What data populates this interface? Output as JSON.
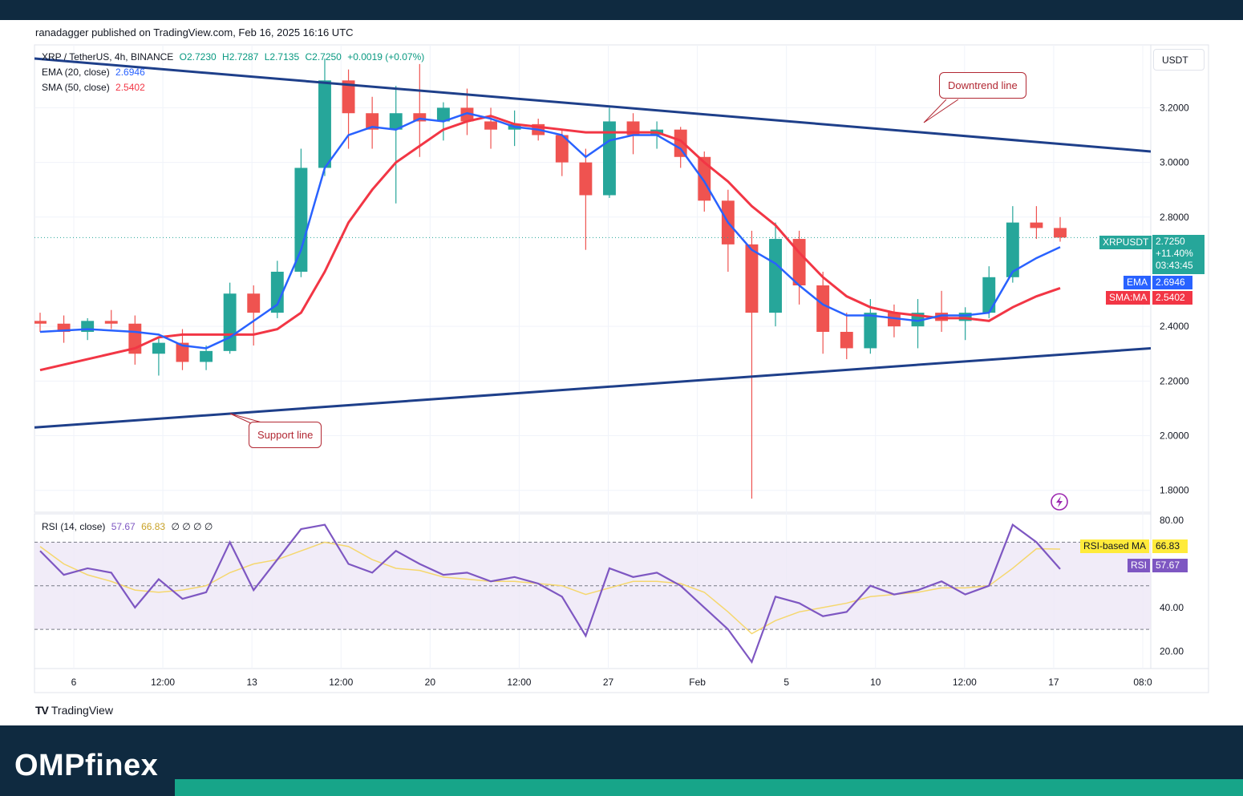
{
  "header": {
    "publisher": "ranadagger published on TradingView.com, Feb 16, 2025 16:16 UTC"
  },
  "legend": {
    "symbol": "XRP / TetherUS, 4h, BINANCE",
    "open": "O2.7230",
    "high": "H2.7287",
    "low": "L2.7135",
    "close": "C2.7250",
    "change": "+0.0019 (+0.07%)",
    "ema_label": "EMA (20, close)",
    "ema_value": "2.6946",
    "sma_label": "SMA (50, close)",
    "sma_value": "2.5402",
    "rsi_label": "RSI (14, close)",
    "rsi_value": "57.67",
    "rsi_ma_value": "66.83",
    "rsi_extra": "∅ ∅ ∅ ∅"
  },
  "axis": {
    "currency": "USDT",
    "price_ticks": [
      "3.2000",
      "3.0000",
      "2.8000",
      "2.4000",
      "2.2000",
      "2.0000",
      "1.8000"
    ],
    "rsi_ticks": [
      "80.00",
      "40.00",
      "20.00"
    ],
    "time_ticks": [
      "6",
      "12:00",
      "13",
      "12:00",
      "20",
      "12:00",
      "27",
      "Feb",
      "5",
      "10",
      "12:00",
      "17",
      "08:0"
    ]
  },
  "price_tags": {
    "symbol": "XRPUSDT",
    "last": "2.7250",
    "change": "+11.40%",
    "countdown": "03:43:45",
    "ema_tag": "EMA",
    "ema_value": "2.6946",
    "sma_tag": "SMA:MA",
    "sma_value": "2.5402",
    "rsi_ma_tag": "RSI-based MA",
    "rsi_ma_value": "66.83",
    "rsi_tag": "RSI",
    "rsi_value": "57.67"
  },
  "annotations": {
    "downtrend": "Downtrend line",
    "support": "Support line"
  },
  "footer": {
    "tv_brand": "TradingView",
    "brand": "OMPfinex"
  },
  "colors": {
    "up": "#26a69a",
    "down": "#ef5350",
    "ema": "#2962ff",
    "sma": "#f23645",
    "trendline": "#1e3f8a",
    "rsi": "#7e57c2",
    "rsi_ma": "#f5d76e",
    "rsi_band": "#ede7f6"
  },
  "chart_data": {
    "type": "candlestick",
    "title": "XRP / TetherUS, 4h, BINANCE",
    "y_range": [
      1.72,
      3.43
    ],
    "rsi_range": [
      12,
      83
    ],
    "rsi_bands": [
      70,
      50,
      30
    ],
    "trendlines": {
      "downtrend": [
        [
          "Jan 4 00:00",
          3.38
        ],
        [
          "Feb 16 20:00",
          3.04
        ]
      ],
      "support": [
        [
          "Jan 4 00:00",
          2.03
        ],
        [
          "Feb 16 20:00",
          2.32
        ]
      ]
    },
    "last_price": 2.725,
    "ema_20": {
      "name": "EMA (20, close)",
      "points": [
        [
          "Jan 4",
          2.38
        ],
        [
          "Jan 6",
          2.39
        ],
        [
          "Jan 8",
          2.38
        ],
        [
          "Jan 9",
          2.37
        ],
        [
          "Jan 10",
          2.33
        ],
        [
          "Jan 11",
          2.32
        ],
        [
          "Jan 12",
          2.36
        ],
        [
          "Jan 13",
          2.42
        ],
        [
          "Jan 14",
          2.48
        ],
        [
          "Jan 15",
          2.68
        ],
        [
          "Jan 16",
          2.98
        ],
        [
          "Jan 17",
          3.1
        ],
        [
          "Jan 18",
          3.13
        ],
        [
          "Jan 19",
          3.12
        ],
        [
          "Jan 20",
          3.16
        ],
        [
          "Jan 21",
          3.15
        ],
        [
          "Jan 22",
          3.18
        ],
        [
          "Jan 23",
          3.16
        ],
        [
          "Jan 24",
          3.13
        ],
        [
          "Jan 25",
          3.12
        ],
        [
          "Jan 26",
          3.1
        ],
        [
          "Jan 27",
          3.02
        ],
        [
          "Jan 28",
          3.08
        ],
        [
          "Jan 29",
          3.1
        ],
        [
          "Jan 30",
          3.1
        ],
        [
          "Jan 31",
          3.05
        ],
        [
          "Feb 1",
          2.93
        ],
        [
          "Feb 2",
          2.78
        ],
        [
          "Feb 3",
          2.68
        ],
        [
          "Feb 4",
          2.63
        ],
        [
          "Feb 5",
          2.55
        ],
        [
          "Feb 6",
          2.48
        ],
        [
          "Feb 7",
          2.44
        ],
        [
          "Feb 8",
          2.44
        ],
        [
          "Feb 9",
          2.43
        ],
        [
          "Feb 10",
          2.42
        ],
        [
          "Feb 11",
          2.44
        ],
        [
          "Feb 12",
          2.44
        ],
        [
          "Feb 13",
          2.45
        ],
        [
          "Feb 14",
          2.6
        ],
        [
          "Feb 15",
          2.65
        ],
        [
          "Feb 16",
          2.69
        ]
      ]
    },
    "sma_50": {
      "name": "SMA (50, close)",
      "points": [
        [
          "Jan 4",
          2.24
        ],
        [
          "Jan 6",
          2.28
        ],
        [
          "Jan 8",
          2.32
        ],
        [
          "Jan 9",
          2.36
        ],
        [
          "Jan 10",
          2.37
        ],
        [
          "Jan 11",
          2.37
        ],
        [
          "Jan 12",
          2.37
        ],
        [
          "Jan 13",
          2.37
        ],
        [
          "Jan 14",
          2.39
        ],
        [
          "Jan 15",
          2.45
        ],
        [
          "Jan 16",
          2.6
        ],
        [
          "Jan 17",
          2.78
        ],
        [
          "Jan 18",
          2.9
        ],
        [
          "Jan 19",
          3.0
        ],
        [
          "Jan 20",
          3.06
        ],
        [
          "Jan 21",
          3.12
        ],
        [
          "Jan 22",
          3.15
        ],
        [
          "Jan 23",
          3.17
        ],
        [
          "Jan 24",
          3.14
        ],
        [
          "Jan 25",
          3.13
        ],
        [
          "Jan 26",
          3.12
        ],
        [
          "Jan 27",
          3.11
        ],
        [
          "Jan 28",
          3.11
        ],
        [
          "Jan 29",
          3.11
        ],
        [
          "Jan 30",
          3.11
        ],
        [
          "Jan 31",
          3.08
        ],
        [
          "Feb 1",
          3.0
        ],
        [
          "Feb 2",
          2.93
        ],
        [
          "Feb 3",
          2.84
        ],
        [
          "Feb 4",
          2.77
        ],
        [
          "Feb 5",
          2.67
        ],
        [
          "Feb 6",
          2.58
        ],
        [
          "Feb 7",
          2.51
        ],
        [
          "Feb 8",
          2.47
        ],
        [
          "Feb 9",
          2.45
        ],
        [
          "Feb 10",
          2.44
        ],
        [
          "Feb 11",
          2.43
        ],
        [
          "Feb 12",
          2.43
        ],
        [
          "Feb 13",
          2.42
        ],
        [
          "Feb 14",
          2.47
        ],
        [
          "Feb 15",
          2.51
        ],
        [
          "Feb 16",
          2.54
        ]
      ]
    },
    "rsi_14": {
      "name": "RSI (14, close)",
      "points": [
        [
          "Jan 4",
          66
        ],
        [
          "Jan 5",
          55
        ],
        [
          "Jan 6",
          58
        ],
        [
          "Jan 7",
          56
        ],
        [
          "Jan 8",
          40
        ],
        [
          "Jan 9",
          53
        ],
        [
          "Jan 10",
          44
        ],
        [
          "Jan 11",
          47
        ],
        [
          "Jan 12",
          70
        ],
        [
          "Jan 13",
          48
        ],
        [
          "Jan 14",
          62
        ],
        [
          "Jan 15",
          76
        ],
        [
          "Jan 16",
          78
        ],
        [
          "Jan 17",
          60
        ],
        [
          "Jan 18",
          56
        ],
        [
          "Jan 19",
          66
        ],
        [
          "Jan 20",
          60
        ],
        [
          "Jan 21",
          55
        ],
        [
          "Jan 22",
          56
        ],
        [
          "Jan 23",
          52
        ],
        [
          "Jan 24",
          54
        ],
        [
          "Jan 25",
          51
        ],
        [
          "Jan 26",
          45
        ],
        [
          "Jan 27",
          27
        ],
        [
          "Jan 28",
          58
        ],
        [
          "Jan 29",
          54
        ],
        [
          "Jan 30",
          56
        ],
        [
          "Jan 31",
          50
        ],
        [
          "Feb 1",
          40
        ],
        [
          "Feb 2",
          30
        ],
        [
          "Feb 3",
          15
        ],
        [
          "Feb 4",
          45
        ],
        [
          "Feb 5",
          42
        ],
        [
          "Feb 6",
          36
        ],
        [
          "Feb 7",
          38
        ],
        [
          "Feb 8",
          50
        ],
        [
          "Feb 9",
          46
        ],
        [
          "Feb 10",
          48
        ],
        [
          "Feb 11",
          52
        ],
        [
          "Feb 12",
          46
        ],
        [
          "Feb 13",
          50
        ],
        [
          "Feb 14",
          78
        ],
        [
          "Feb 15",
          70
        ],
        [
          "Feb 16",
          57.67
        ]
      ]
    },
    "rsi_ma": {
      "name": "RSI-based MA",
      "points": [
        [
          "Jan 4",
          68
        ],
        [
          "Jan 5",
          60
        ],
        [
          "Jan 6",
          55
        ],
        [
          "Jan 7",
          52
        ],
        [
          "Jan 8",
          48
        ],
        [
          "Jan 9",
          47
        ],
        [
          "Jan 10",
          48
        ],
        [
          "Jan 11",
          50
        ],
        [
          "Jan 12",
          56
        ],
        [
          "Jan 13",
          60
        ],
        [
          "Jan 14",
          62
        ],
        [
          "Jan 15",
          66
        ],
        [
          "Jan 16",
          70
        ],
        [
          "Jan 17",
          68
        ],
        [
          "Jan 18",
          62
        ],
        [
          "Jan 19",
          58
        ],
        [
          "Jan 20",
          57
        ],
        [
          "Jan 21",
          54
        ],
        [
          "Jan 22",
          53
        ],
        [
          "Jan 23",
          52
        ],
        [
          "Jan 24",
          52
        ],
        [
          "Jan 25",
          51
        ],
        [
          "Jan 26",
          50
        ],
        [
          "Jan 27",
          46
        ],
        [
          "Jan 28",
          49
        ],
        [
          "Jan 29",
          52
        ],
        [
          "Jan 30",
          52
        ],
        [
          "Jan 31",
          51
        ],
        [
          "Feb 1",
          47
        ],
        [
          "Feb 2",
          38
        ],
        [
          "Feb 3",
          28
        ],
        [
          "Feb 4",
          34
        ],
        [
          "Feb 5",
          38
        ],
        [
          "Feb 6",
          40
        ],
        [
          "Feb 7",
          42
        ],
        [
          "Feb 8",
          45
        ],
        [
          "Feb 9",
          46
        ],
        [
          "Feb 10",
          47
        ],
        [
          "Feb 11",
          49
        ],
        [
          "Feb 12",
          49
        ],
        [
          "Feb 13",
          50
        ],
        [
          "Feb 14",
          58
        ],
        [
          "Feb 15",
          67
        ],
        [
          "Feb 16",
          66.83
        ]
      ]
    },
    "candles": [
      [
        "Jan 4",
        2.42,
        2.45,
        2.38,
        2.41
      ],
      [
        "Jan 5",
        2.41,
        2.44,
        2.34,
        2.38
      ],
      [
        "Jan 6",
        2.38,
        2.43,
        2.35,
        2.42
      ],
      [
        "Jan 7",
        2.42,
        2.46,
        2.39,
        2.41
      ],
      [
        "Jan 8",
        2.41,
        2.44,
        2.26,
        2.3
      ],
      [
        "Jan 9",
        2.3,
        2.36,
        2.22,
        2.34
      ],
      [
        "Jan 10",
        2.34,
        2.39,
        2.24,
        2.27
      ],
      [
        "Jan 11",
        2.27,
        2.33,
        2.24,
        2.31
      ],
      [
        "Jan 12",
        2.31,
        2.56,
        2.3,
        2.52
      ],
      [
        "Jan 13",
        2.52,
        2.55,
        2.33,
        2.45
      ],
      [
        "Jan 14",
        2.45,
        2.64,
        2.43,
        2.6
      ],
      [
        "Jan 15",
        2.6,
        3.05,
        2.58,
        2.98
      ],
      [
        "Jan 16",
        2.98,
        3.38,
        2.95,
        3.3
      ],
      [
        "Jan 17",
        3.3,
        3.34,
        3.05,
        3.18
      ],
      [
        "Jan 18",
        3.18,
        3.24,
        3.05,
        3.12
      ],
      [
        "Jan 19",
        3.12,
        3.28,
        2.85,
        3.18
      ],
      [
        "Jan 20",
        3.18,
        3.36,
        3.02,
        3.15
      ],
      [
        "Jan 21",
        3.15,
        3.22,
        3.08,
        3.2
      ],
      [
        "Jan 22",
        3.2,
        3.27,
        3.1,
        3.15
      ],
      [
        "Jan 23",
        3.15,
        3.2,
        3.05,
        3.12
      ],
      [
        "Jan 24",
        3.12,
        3.19,
        3.06,
        3.14
      ],
      [
        "Jan 25",
        3.14,
        3.16,
        3.08,
        3.1
      ],
      [
        "Jan 26",
        3.1,
        3.12,
        2.95,
        3.0
      ],
      [
        "Jan 27",
        3.0,
        3.05,
        2.68,
        2.88
      ],
      [
        "Jan 28",
        2.88,
        3.2,
        2.87,
        3.15
      ],
      [
        "Jan 29",
        3.15,
        3.18,
        3.03,
        3.1
      ],
      [
        "Jan 30",
        3.1,
        3.15,
        3.05,
        3.12
      ],
      [
        "Jan 31",
        3.12,
        3.13,
        2.98,
        3.02
      ],
      [
        "Feb 1",
        3.02,
        3.04,
        2.82,
        2.86
      ],
      [
        "Feb 2",
        2.86,
        2.9,
        2.6,
        2.7
      ],
      [
        "Feb 3",
        2.7,
        2.75,
        1.77,
        2.45
      ],
      [
        "Feb 4",
        2.45,
        2.78,
        2.4,
        2.72
      ],
      [
        "Feb 5",
        2.72,
        2.75,
        2.48,
        2.55
      ],
      [
        "Feb 6",
        2.55,
        2.6,
        2.3,
        2.38
      ],
      [
        "Feb 7",
        2.38,
        2.45,
        2.28,
        2.32
      ],
      [
        "Feb 8",
        2.32,
        2.5,
        2.3,
        2.45
      ],
      [
        "Feb 9",
        2.45,
        2.48,
        2.36,
        2.4
      ],
      [
        "Feb 10",
        2.4,
        2.5,
        2.32,
        2.45
      ],
      [
        "Feb 11",
        2.45,
        2.53,
        2.38,
        2.42
      ],
      [
        "Feb 12",
        2.42,
        2.47,
        2.35,
        2.45
      ],
      [
        "Feb 13",
        2.45,
        2.62,
        2.43,
        2.58
      ],
      [
        "Feb 14",
        2.58,
        2.84,
        2.56,
        2.78
      ],
      [
        "Feb 15",
        2.78,
        2.84,
        2.72,
        2.76
      ],
      [
        "Feb 16",
        2.76,
        2.8,
        2.71,
        2.725
      ]
    ]
  }
}
